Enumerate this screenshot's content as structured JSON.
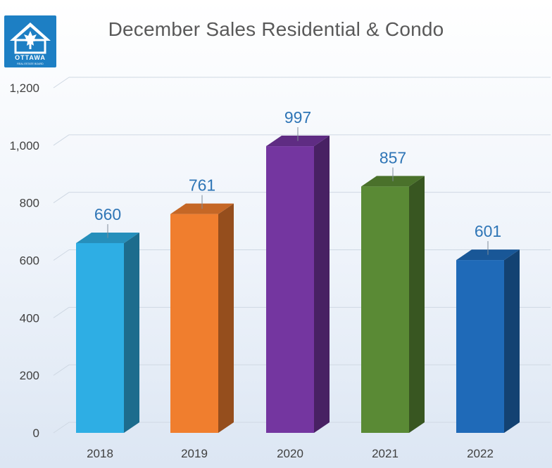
{
  "logo": {
    "icon": "ottawa-real-estate-board-logo",
    "text": "OTTAWA",
    "subtext": "REAL ESTATE BOARD"
  },
  "colors": {
    "2018": "#2eaee4",
    "2019": "#f07e2e",
    "2020": "#7436a0",
    "2021": "#5a8a35",
    "2022": "#1f6ab8",
    "data_label": "#2e75b6",
    "axis_text": "#404040",
    "grid": "#cfd8e3"
  },
  "chart_data": {
    "type": "bar",
    "title": "December Sales Residential & Condo",
    "categories": [
      "2018",
      "2019",
      "2020",
      "2021",
      "2022"
    ],
    "values": [
      660,
      761,
      997,
      857,
      601
    ],
    "data_labels": [
      "660",
      "761",
      "997",
      "857",
      "601"
    ],
    "xlabel": "",
    "ylabel": "",
    "ylim": [
      0,
      1200
    ],
    "yticks": [
      0,
      200,
      400,
      600,
      800,
      1000,
      1200
    ],
    "ytick_labels": [
      "0",
      "200",
      "400",
      "600",
      "800",
      "1,000",
      "1,200"
    ],
    "grid": true,
    "legend": "none",
    "style": "3d-column"
  }
}
